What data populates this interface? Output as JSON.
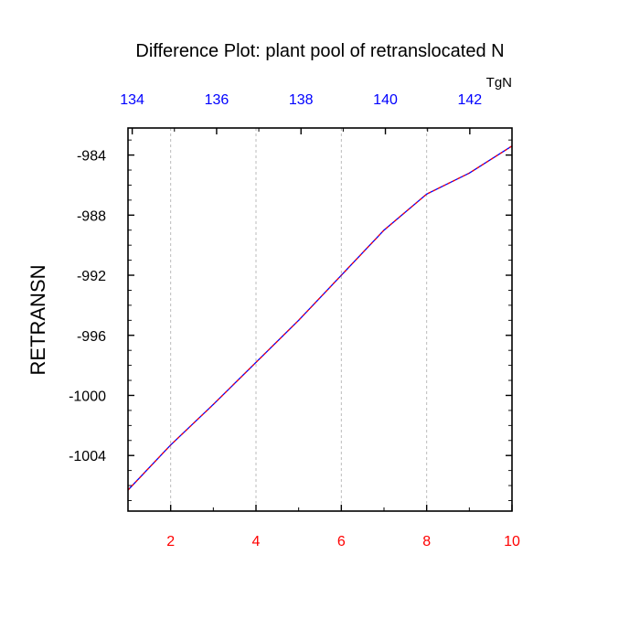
{
  "chart_data": {
    "type": "line",
    "title": "Difference Plot: plant pool of retranslocated N",
    "ylabel": "RETRANSN",
    "units": "TgN",
    "xlim": [
      1,
      10
    ],
    "ylim": [
      -1007.7,
      -982.2
    ],
    "x_ticks": [
      {
        "value": 2,
        "label": "2"
      },
      {
        "value": 4,
        "label": "4"
      },
      {
        "value": 6,
        "label": "6"
      },
      {
        "value": 8,
        "label": "8"
      },
      {
        "value": 10,
        "label": "10"
      }
    ],
    "top_axis_lim": [
      133.9,
      143.0
    ],
    "top_ticks": [
      {
        "value": 134,
        "label": "134"
      },
      {
        "value": 136,
        "label": "136"
      },
      {
        "value": 138,
        "label": "138"
      },
      {
        "value": 140,
        "label": "140"
      },
      {
        "value": 142,
        "label": "142"
      }
    ],
    "y_ticks": [
      {
        "value": -984,
        "label": "-984"
      },
      {
        "value": -988,
        "label": "-988"
      },
      {
        "value": -992,
        "label": "-992"
      },
      {
        "value": -996,
        "label": "-996"
      },
      {
        "value": -1000,
        "label": "-1000"
      },
      {
        "value": -1004,
        "label": "-1004"
      }
    ],
    "grid": "vertical dashed at x ticks",
    "series": [
      {
        "x": [
          1,
          2,
          3,
          4,
          5,
          6,
          7,
          8,
          9,
          10
        ],
        "values": [
          -1006.3,
          -1003.3,
          -1000.6,
          -997.8,
          -995.0,
          -992.0,
          -989.0,
          -986.6,
          -985.2,
          -983.4
        ],
        "color": "#0000ff",
        "dash_color": "#ff0000"
      }
    ],
    "colors": {
      "bottom_axis_labels": "#ff0000",
      "top_axis_labels": "#0000ff",
      "grid": "#bbbbbb",
      "frame": "#000000"
    }
  }
}
